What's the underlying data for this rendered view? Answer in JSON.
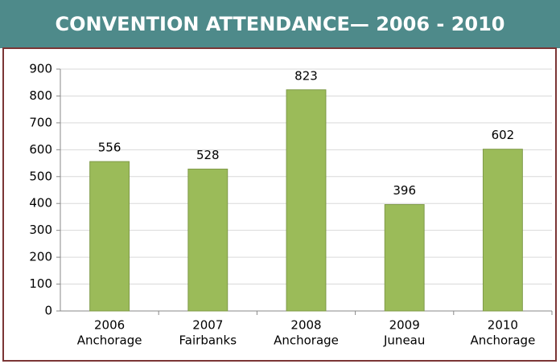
{
  "chart_data": {
    "type": "bar",
    "title": "CONVENTION ATTENDANCE— 2006 - 2010",
    "categories": [
      [
        "2006",
        "Anchorage"
      ],
      [
        "2007",
        "Fairbanks"
      ],
      [
        "2008",
        "Anchorage"
      ],
      [
        "2009",
        "Juneau"
      ],
      [
        "2010",
        "Anchorage"
      ]
    ],
    "values": [
      556,
      528,
      823,
      396,
      602
    ],
    "color": "#9bbb59",
    "ylim": [
      0,
      900
    ],
    "yticks": [
      0,
      100,
      200,
      300,
      400,
      500,
      600,
      700,
      800,
      900
    ],
    "grid": true
  }
}
